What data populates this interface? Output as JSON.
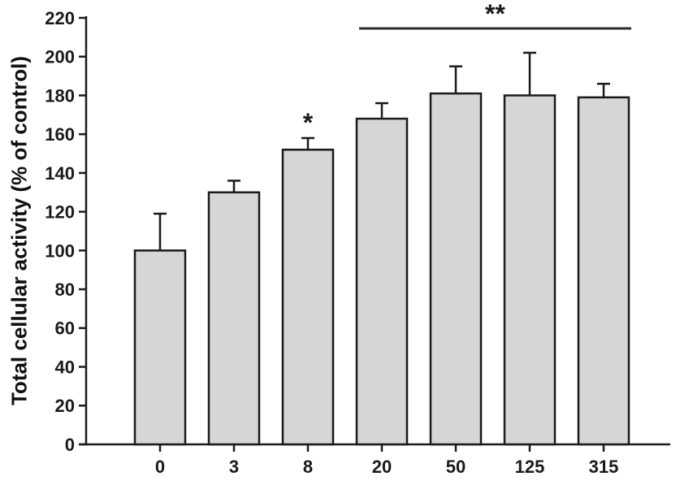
{
  "figure": {
    "background": "#ffffff"
  },
  "chart_data": {
    "type": "bar",
    "categories": [
      "0",
      "3",
      "8",
      "20",
      "50",
      "125",
      "315"
    ],
    "values": [
      100,
      130,
      152,
      168,
      181,
      180,
      179
    ],
    "errors_up": [
      19,
      6,
      6,
      8,
      14,
      22,
      7
    ],
    "title": "",
    "xlabel": "",
    "ylabel": "Total cellular activity (% of control)",
    "ylim": [
      0,
      220
    ],
    "ytick_step": 20,
    "yticks": [
      0,
      20,
      40,
      60,
      80,
      100,
      120,
      140,
      160,
      180,
      200,
      220
    ],
    "grid": false,
    "legend": false,
    "bar_fill": "#d6d6d6",
    "bar_stroke": "#1a1a1a",
    "axis_color": "#1a1a1a",
    "significance_line_color": "#2e2e2e",
    "annotations": [
      {
        "type": "star",
        "label": "*",
        "category": "8"
      },
      {
        "type": "bracket",
        "label": "**",
        "from_category": "20",
        "to_category": "315"
      }
    ]
  }
}
